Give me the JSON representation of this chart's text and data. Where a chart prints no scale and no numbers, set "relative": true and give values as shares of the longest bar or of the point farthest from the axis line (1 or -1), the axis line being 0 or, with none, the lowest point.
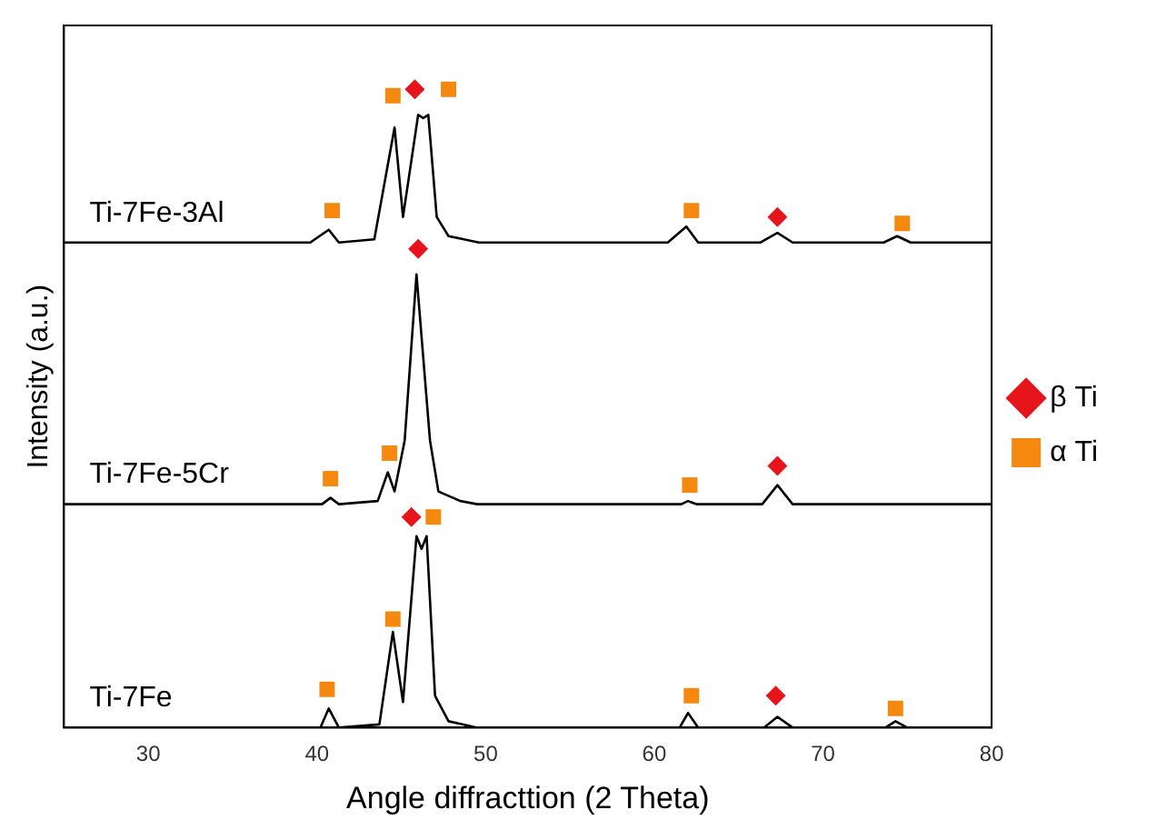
{
  "chart_data": {
    "type": "line",
    "xlabel": "Angle diffracttion (2 Theta)",
    "ylabel": "Intensity (a.u.)",
    "relative": true,
    "xlim": [
      25,
      80
    ],
    "xticks": [
      30,
      40,
      50,
      60,
      70,
      80
    ],
    "grid": false,
    "legend": "right",
    "line_style": "solid",
    "series": [
      {
        "name": "Ti-7Fe-3Al",
        "marker": "none",
        "color": "#000000",
        "x": [
          25,
          39.6,
          40.7,
          41.3,
          43.4,
          44.6,
          45.1,
          46.0,
          46.3,
          46.6,
          47.1,
          47.8,
          49.6,
          60.8,
          61.9,
          62.6,
          66.3,
          67.3,
          68.2,
          73.6,
          74.4,
          75.2,
          80
        ],
        "values": [
          0.76,
          0.76,
          0.78,
          0.76,
          0.765,
          0.94,
          0.8,
          0.96,
          0.955,
          0.96,
          0.8,
          0.77,
          0.76,
          0.76,
          0.785,
          0.76,
          0.76,
          0.775,
          0.76,
          0.76,
          0.77,
          0.76,
          0.76
        ]
      },
      {
        "name": "Ti-7Fe-5Cr",
        "marker": "none",
        "color": "#000000",
        "x": [
          25,
          40.3,
          40.8,
          41.3,
          43.6,
          44.2,
          44.6,
          45.2,
          45.9,
          46.7,
          47.2,
          48.5,
          49.5,
          61.6,
          62.0,
          62.5,
          66.4,
          67.3,
          68.2,
          80
        ],
        "values": [
          0.35,
          0.35,
          0.36,
          0.35,
          0.355,
          0.4,
          0.37,
          0.45,
          0.71,
          0.45,
          0.37,
          0.355,
          0.35,
          0.35,
          0.355,
          0.35,
          0.35,
          0.38,
          0.35,
          0.35
        ]
      },
      {
        "name": "Ti-7Fe",
        "marker": "none",
        "color": "#000000",
        "x": [
          35.6,
          40.2,
          40.7,
          41.3,
          43.7,
          44.5,
          45.1,
          45.9,
          46.2,
          46.5,
          47.0,
          47.8,
          49.5,
          61.5,
          62.0,
          62.6,
          66.5,
          67.3,
          68.2,
          73.7,
          74.3,
          75.0,
          80
        ],
        "values": [
          0,
          0,
          0.03,
          0,
          0.005,
          0.15,
          0.04,
          0.3,
          0.28,
          0.3,
          0.05,
          0.01,
          0,
          0,
          0.023,
          0,
          0,
          0.017,
          0,
          0,
          0.01,
          0,
          0
        ]
      },
      {
        "name": "β Ti",
        "type": "scatter",
        "marker": "diamond",
        "color": "#e8141c",
        "x": [
          45.8,
          67.3,
          46.0,
          67.3,
          45.6,
          67.2
        ],
        "values": [
          1.0,
          0.8,
          0.75,
          0.41,
          0.33,
          0.05
        ]
      },
      {
        "name": "α Ti",
        "type": "scatter",
        "marker": "square",
        "color": "#f5880f",
        "x": [
          40.9,
          44.5,
          47.8,
          62.2,
          74.7,
          40.8,
          44.3,
          62.1,
          40.6,
          44.5,
          46.9,
          62.2,
          74.3
        ],
        "values": [
          0.81,
          0.99,
          1.0,
          0.81,
          0.79,
          0.39,
          0.43,
          0.38,
          0.06,
          0.17,
          0.33,
          0.05,
          0.03
        ]
      }
    ]
  }
}
